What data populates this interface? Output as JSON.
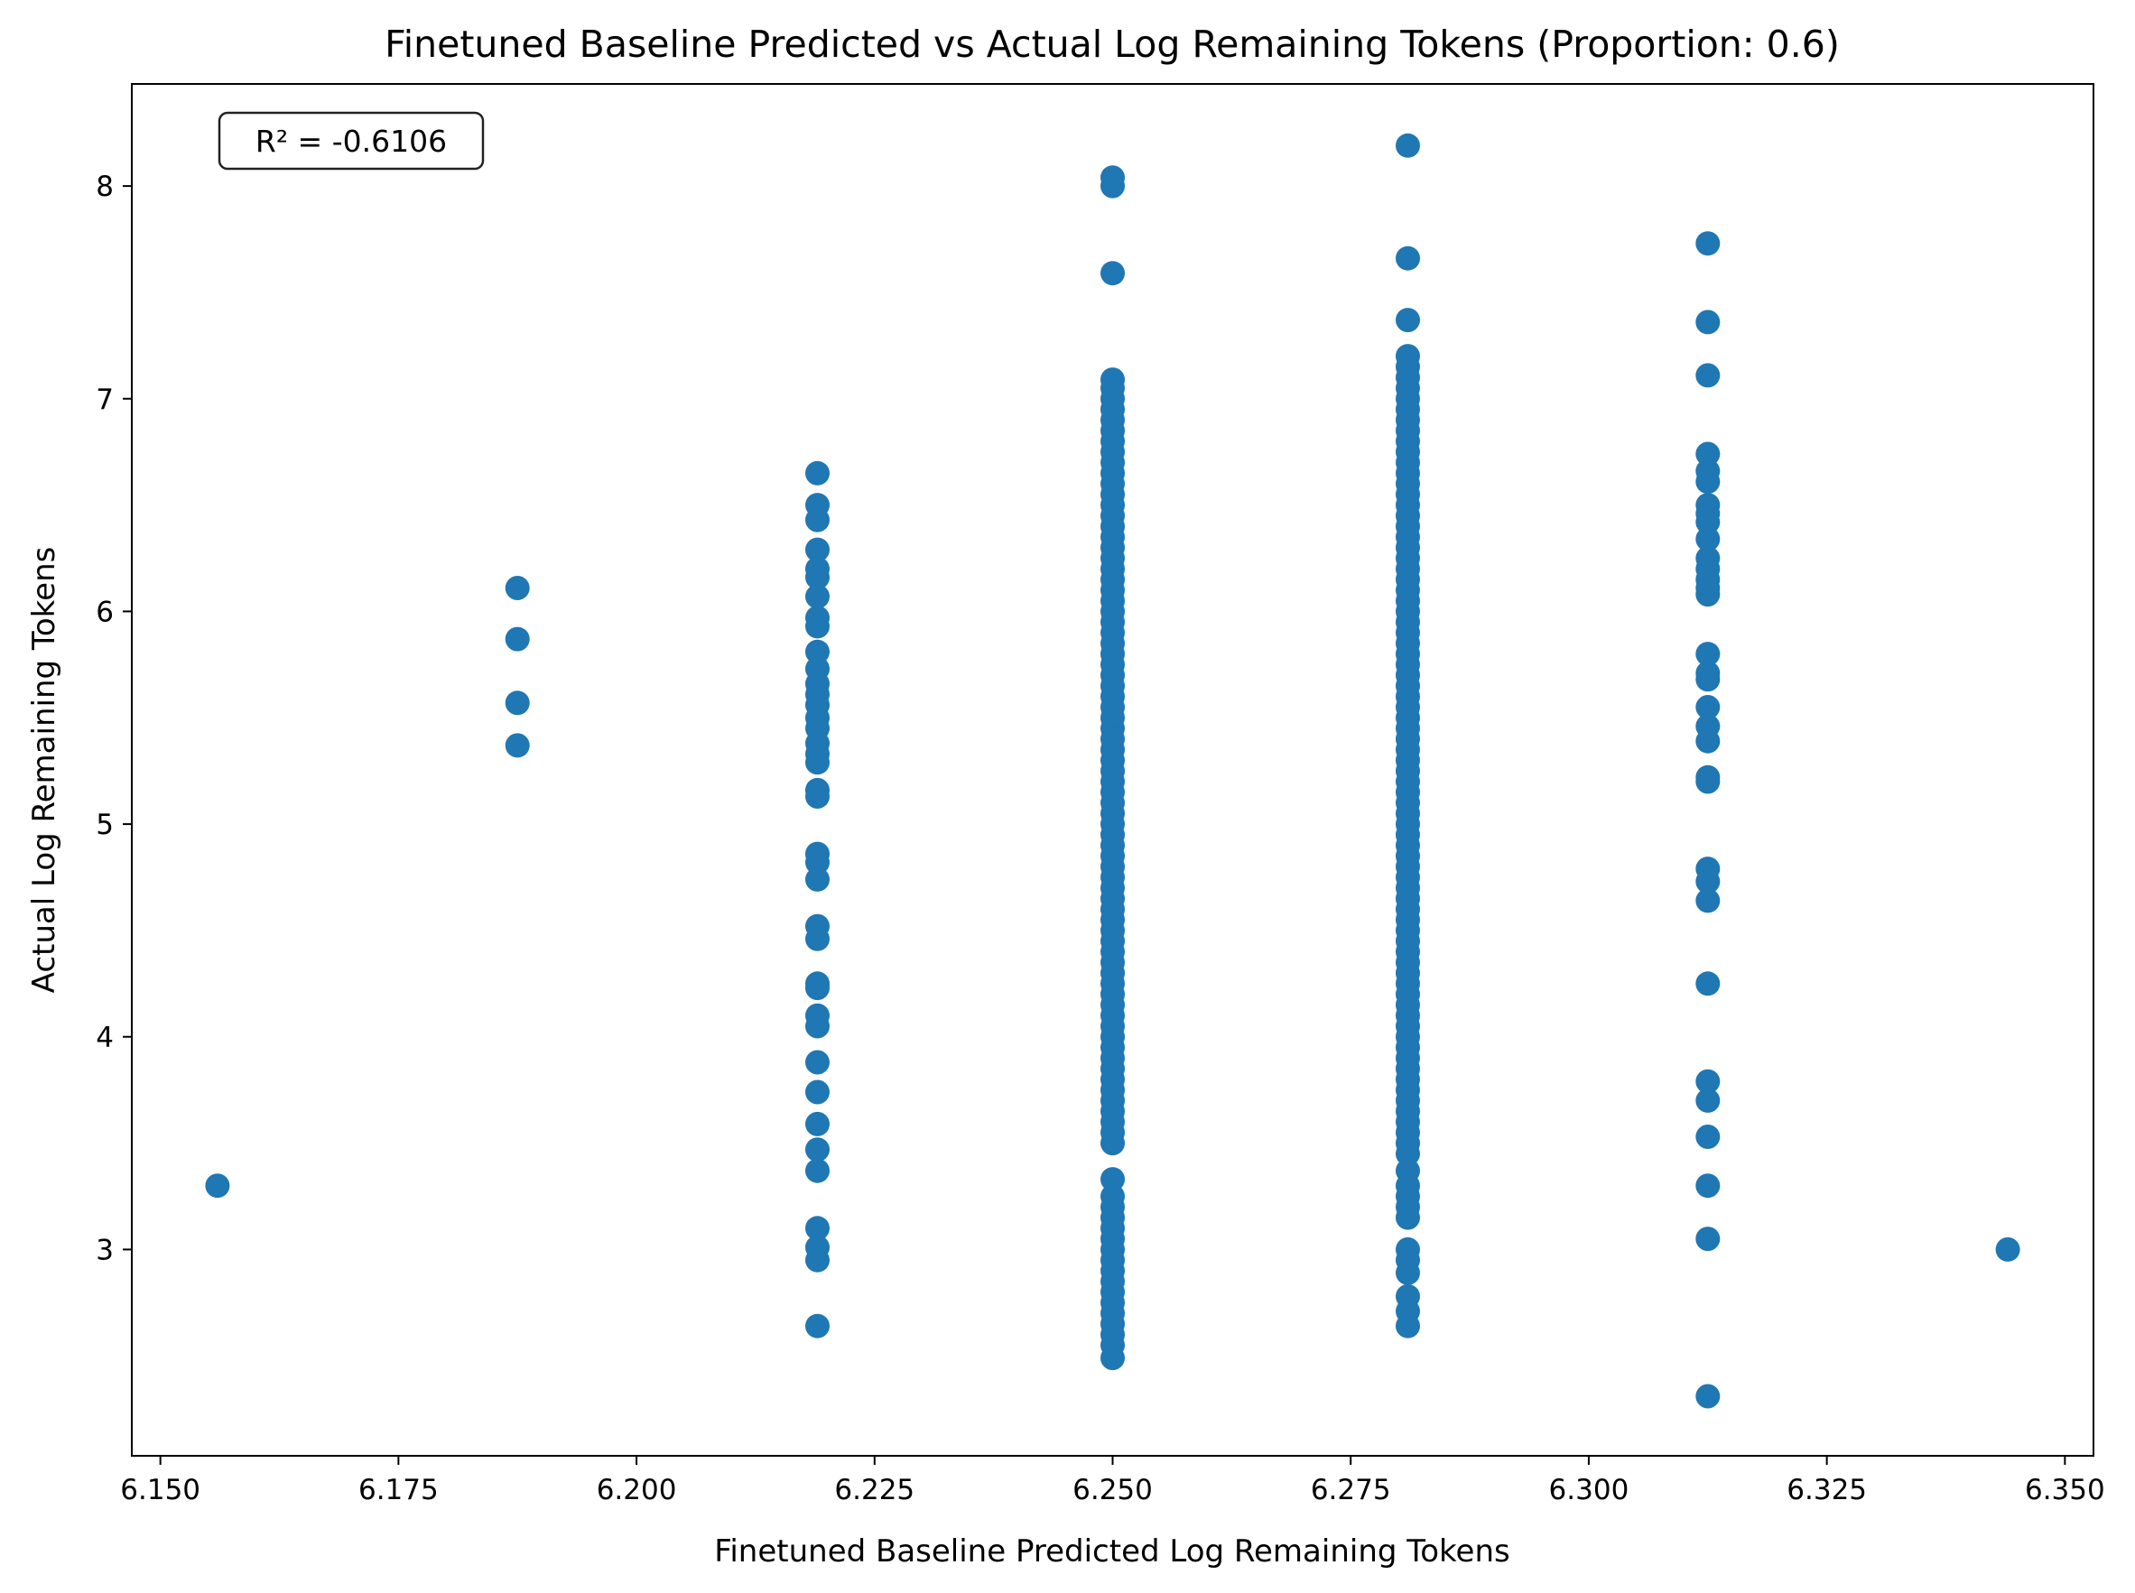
{
  "chart_data": {
    "type": "scatter",
    "title": "Finetuned Baseline Predicted vs Actual Log Remaining Tokens (Proportion: 0.6)",
    "xlabel": "Finetuned Baseline Predicted Log Remaining Tokens",
    "ylabel": "Actual Log Remaining Tokens",
    "annotation": "R² = -0.6106",
    "xlim": [
      6.147,
      6.353
    ],
    "ylim": [
      2.03,
      8.48
    ],
    "xticks": [
      6.15,
      6.175,
      6.2,
      6.225,
      6.25,
      6.275,
      6.3,
      6.325,
      6.35
    ],
    "xtick_labels": [
      "6.150",
      "6.175",
      "6.200",
      "6.225",
      "6.250",
      "6.275",
      "6.300",
      "6.325",
      "6.350"
    ],
    "yticks": [
      3,
      4,
      5,
      6,
      7,
      8
    ],
    "ytick_labels": [
      "3",
      "4",
      "5",
      "6",
      "7",
      "8"
    ],
    "grid": false,
    "marker_color": "#1f77b4",
    "series": [
      {
        "points": [
          {
            "x": 6.156,
            "y": [
              3.3
            ]
          },
          {
            "x": 6.1875,
            "y": [
              6.11,
              5.87,
              5.57,
              5.37
            ]
          },
          {
            "x": 6.219,
            "y": [
              6.65,
              6.5,
              6.43,
              6.29,
              6.2,
              6.16,
              6.07,
              5.97,
              5.93,
              5.81,
              5.73,
              5.66,
              5.61,
              5.56,
              5.5,
              5.45,
              5.38,
              5.33,
              5.29,
              5.16,
              5.13,
              4.86,
              4.82,
              4.74,
              4.52,
              4.46,
              4.25,
              4.23,
              4.1,
              4.05,
              3.88,
              3.74,
              3.59,
              3.47,
              3.37,
              3.1,
              3.01,
              2.95,
              2.64
            ]
          },
          {
            "x": 6.25,
            "y": [
              8.04,
              8.0,
              7.59,
              7.09,
              7.05,
              7.0,
              6.95,
              6.9,
              6.85,
              6.8,
              6.75,
              6.7,
              6.65,
              6.6,
              6.55,
              6.5,
              6.45,
              6.4,
              6.35,
              6.3,
              6.25,
              6.2,
              6.15,
              6.1,
              6.05,
              6.0,
              5.95,
              5.9,
              5.85,
              5.8,
              5.75,
              5.7,
              5.65,
              5.6,
              5.55,
              5.5,
              5.45,
              5.4,
              5.35,
              5.3,
              5.25,
              5.2,
              5.15,
              5.1,
              5.05,
              5.0,
              4.95,
              4.9,
              4.85,
              4.8,
              4.75,
              4.7,
              4.65,
              4.6,
              4.55,
              4.5,
              4.45,
              4.4,
              4.35,
              4.3,
              4.25,
              4.2,
              4.15,
              4.1,
              4.05,
              4.0,
              3.95,
              3.9,
              3.85,
              3.8,
              3.75,
              3.7,
              3.65,
              3.6,
              3.55,
              3.5,
              3.33,
              3.25,
              3.2,
              3.15,
              3.1,
              3.05,
              3.0,
              2.95,
              2.9,
              2.85,
              2.8,
              2.75,
              2.7,
              2.65,
              2.6,
              2.55,
              2.49
            ]
          },
          {
            "x": 6.281,
            "y": [
              8.19,
              7.66,
              7.37,
              7.2,
              7.15,
              7.1,
              7.05,
              7.0,
              6.95,
              6.9,
              6.85,
              6.8,
              6.75,
              6.7,
              6.65,
              6.6,
              6.55,
              6.5,
              6.45,
              6.4,
              6.35,
              6.3,
              6.25,
              6.2,
              6.15,
              6.1,
              6.05,
              6.0,
              5.95,
              5.9,
              5.85,
              5.8,
              5.75,
              5.7,
              5.65,
              5.6,
              5.55,
              5.5,
              5.45,
              5.4,
              5.35,
              5.3,
              5.25,
              5.2,
              5.15,
              5.1,
              5.05,
              5.0,
              4.95,
              4.9,
              4.85,
              4.8,
              4.75,
              4.7,
              4.65,
              4.6,
              4.55,
              4.5,
              4.45,
              4.4,
              4.35,
              4.3,
              4.25,
              4.2,
              4.15,
              4.1,
              4.05,
              4.0,
              3.95,
              3.9,
              3.85,
              3.8,
              3.75,
              3.7,
              3.65,
              3.6,
              3.55,
              3.5,
              3.45,
              3.37,
              3.3,
              3.25,
              3.2,
              3.15,
              3.0,
              2.95,
              2.89,
              2.78,
              2.71,
              2.64
            ]
          },
          {
            "x": 6.3125,
            "y": [
              7.73,
              7.36,
              7.11,
              6.74,
              6.66,
              6.61,
              6.5,
              6.46,
              6.42,
              6.34,
              6.25,
              6.2,
              6.15,
              6.11,
              6.08,
              5.8,
              5.71,
              5.68,
              5.55,
              5.46,
              5.39,
              5.22,
              5.2,
              4.79,
              4.73,
              4.64,
              4.25,
              3.79,
              3.7,
              3.53,
              3.3,
              3.05,
              2.31
            ]
          },
          {
            "x": 6.344,
            "y": [
              3.0
            ]
          }
        ]
      }
    ]
  }
}
